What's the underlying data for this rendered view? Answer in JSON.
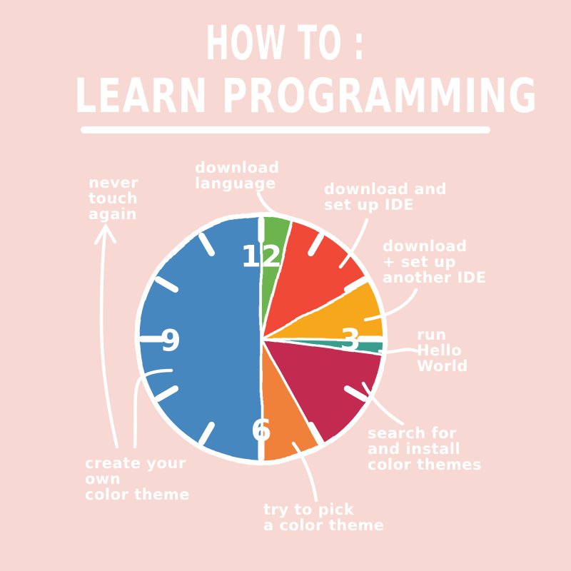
{
  "page": {
    "background": "#f8d8d2",
    "text_color": "#ffffff"
  },
  "title": {
    "line1": "HOW TO :",
    "line2": "LEARN PROGRAMMING"
  },
  "chart_data": {
    "type": "pie",
    "style": "clock-face",
    "title": "HOW TO : LEARN PROGRAMMING",
    "clock_numbers": [
      "12",
      "3",
      "6",
      "9"
    ],
    "legend_position": "radial-callouts",
    "slices": [
      {
        "label": "download language",
        "color": "#6cb44d",
        "start_deg": 0,
        "end_deg": 14.5,
        "percent": 4.0
      },
      {
        "label": "download and set up IDE",
        "color": "#f04a38",
        "start_deg": 14.5,
        "end_deg": 62,
        "percent": 13.2
      },
      {
        "label": "download + set up another IDE",
        "color": "#f7a71f",
        "start_deg": 62,
        "end_deg": 91,
        "percent": 8.1
      },
      {
        "label": "run Hello World",
        "color": "#3a9d8d",
        "start_deg": 91,
        "end_deg": 97.5,
        "percent": 1.8
      },
      {
        "label": "search for and install color themes",
        "color": "#c22950",
        "start_deg": 97.5,
        "end_deg": 151,
        "percent": 14.8
      },
      {
        "label": "try to pick a color theme",
        "color": "#f0813a",
        "start_deg": 151,
        "end_deg": 180,
        "percent": 8.1
      },
      {
        "label": "create your own color theme",
        "color": "#4787c0",
        "start_deg": 180,
        "end_deg": 360,
        "percent": 50.0,
        "annotation": "never touch again"
      }
    ]
  },
  "callouts": {
    "never_touch_again": "never\ntouch\nagain",
    "download_language": "download\nlanguage",
    "download_setup_ide": "download and\nset up IDE",
    "download_another_ide": "download\n+ set up\nanother IDE",
    "run_hello_world": "run\nHello\nWorld",
    "search_install_themes": "search for\nand install\ncolor themes",
    "try_pick_theme": "try to pick\na color theme",
    "create_own_theme": "create your\nown\ncolor theme"
  }
}
